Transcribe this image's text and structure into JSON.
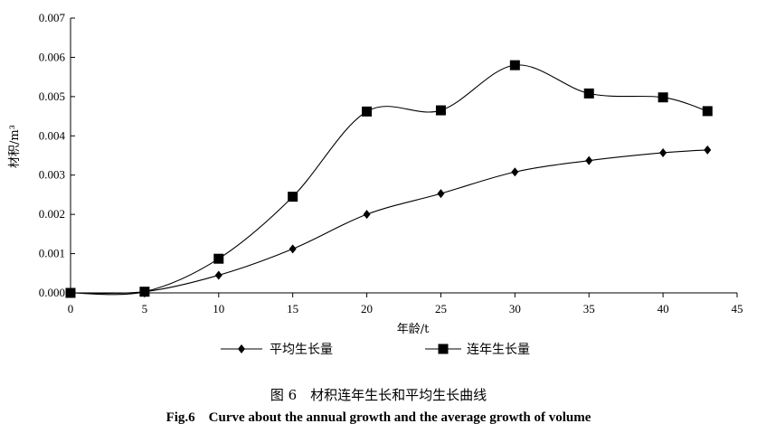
{
  "chart_data": {
    "type": "line",
    "xlabel": "年龄/t",
    "ylabel": "材积/m³",
    "xlim": [
      0,
      45
    ],
    "ylim": [
      0,
      0.007
    ],
    "x_ticks": [
      "0",
      "5",
      "10",
      "15",
      "20",
      "25",
      "30",
      "35",
      "40",
      "45"
    ],
    "y_ticks": [
      "0.000",
      "0.001",
      "0.002",
      "0.003",
      "0.004",
      "0.005",
      "0.006",
      "0.007"
    ],
    "grid": false,
    "legend_position": "bottom",
    "series": [
      {
        "name": "平均生长量",
        "marker": "diamond",
        "x": [
          0,
          5,
          10,
          15,
          20,
          25,
          30,
          35,
          40,
          43
        ],
        "values": [
          0.0,
          3e-05,
          0.00045,
          0.00112,
          0.002,
          0.00253,
          0.00308,
          0.00337,
          0.00357,
          0.00364
        ]
      },
      {
        "name": "连年生长量",
        "marker": "square",
        "x": [
          0,
          5,
          10,
          15,
          20,
          25,
          30,
          35,
          40,
          43
        ],
        "values": [
          0.0,
          3e-05,
          0.00087,
          0.00245,
          0.00462,
          0.00465,
          0.0058,
          0.00508,
          0.00498,
          0.00463
        ]
      }
    ]
  },
  "caption": {
    "cn": "图 6　材积连年生长和平均生长曲线",
    "en": "Fig.6　Curve about the annual growth and the average growth of volume"
  }
}
